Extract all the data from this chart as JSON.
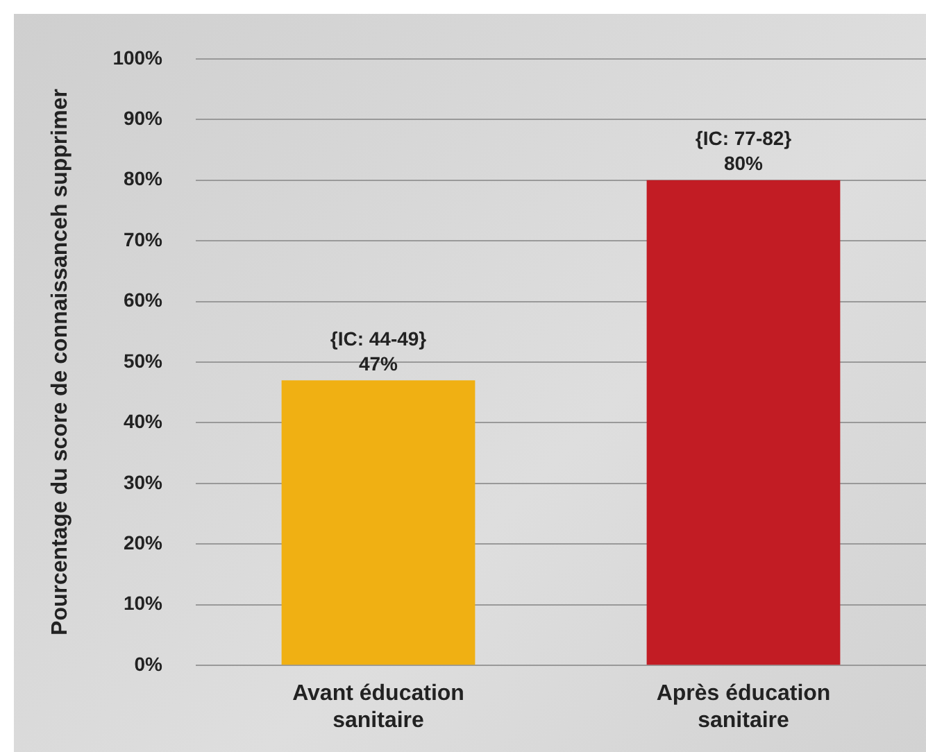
{
  "chart_data": {
    "type": "bar",
    "ylabel": "Pourcentage du score de connaissanceh supprimer",
    "categories": [
      "Avant éducation sanitaire",
      "Après éducation sanitaire"
    ],
    "values": [
      47,
      80
    ],
    "colors": [
      "#f0b013",
      "#c21c24"
    ],
    "value_labels": [
      "47%",
      "80%"
    ],
    "annotations": [
      {
        "text": "{IC: 44-49}",
        "x": "Avant éducation sanitaire",
        "y": 47
      },
      {
        "text": "{IC: 77-82}",
        "x": "Après éducation sanitaire",
        "y": 80
      }
    ],
    "ylim": [
      0,
      100
    ],
    "yticks": [
      {
        "value": 0,
        "label": "0%"
      },
      {
        "value": 10,
        "label": "10%"
      },
      {
        "value": 20,
        "label": "20%"
      },
      {
        "value": 30,
        "label": "30%"
      },
      {
        "value": 40,
        "label": "40%"
      },
      {
        "value": 50,
        "label": "50%"
      },
      {
        "value": 60,
        "label": "60%"
      },
      {
        "value": 70,
        "label": "70%"
      },
      {
        "value": 80,
        "label": "80%"
      },
      {
        "value": 90,
        "label": "90%"
      },
      {
        "value": 100,
        "label": "100%"
      }
    ],
    "grid": "y",
    "legend": false
  }
}
